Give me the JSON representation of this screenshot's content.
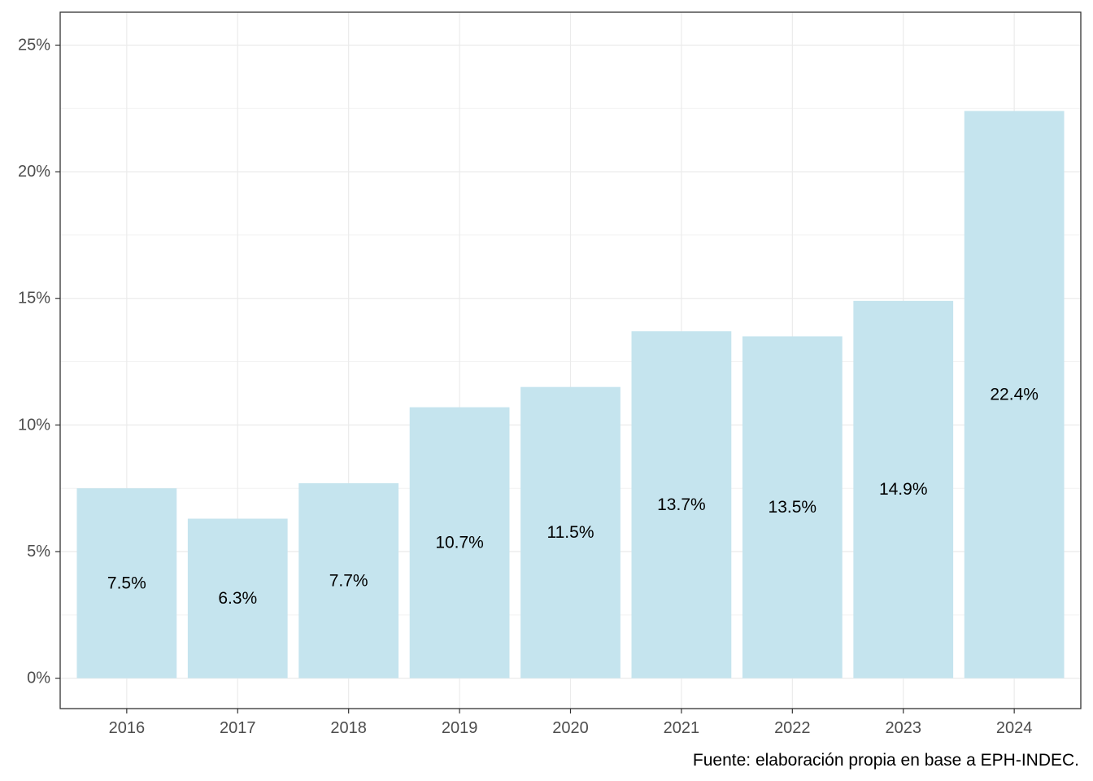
{
  "chart_data": {
    "type": "bar",
    "categories": [
      "2016",
      "2017",
      "2018",
      "2019",
      "2020",
      "2021",
      "2022",
      "2023",
      "2024"
    ],
    "values": [
      7.5,
      6.3,
      7.7,
      10.7,
      11.5,
      13.7,
      13.5,
      14.9,
      22.4
    ],
    "value_labels": [
      "7.5%",
      "6.3%",
      "7.7%",
      "10.7%",
      "11.5%",
      "13.7%",
      "13.5%",
      "14.9%",
      "22.4%"
    ],
    "ylim": [
      -1.2,
      26.3
    ],
    "yticks": [
      0,
      5,
      10,
      15,
      20,
      25
    ],
    "ytick_labels": [
      "0%",
      "5%",
      "10%",
      "15%",
      "20%",
      "25%"
    ],
    "grid": true,
    "bar_color": "#c5e4ee",
    "caption": "Fuente: elaboración propia en base a EPH-INDEC."
  }
}
